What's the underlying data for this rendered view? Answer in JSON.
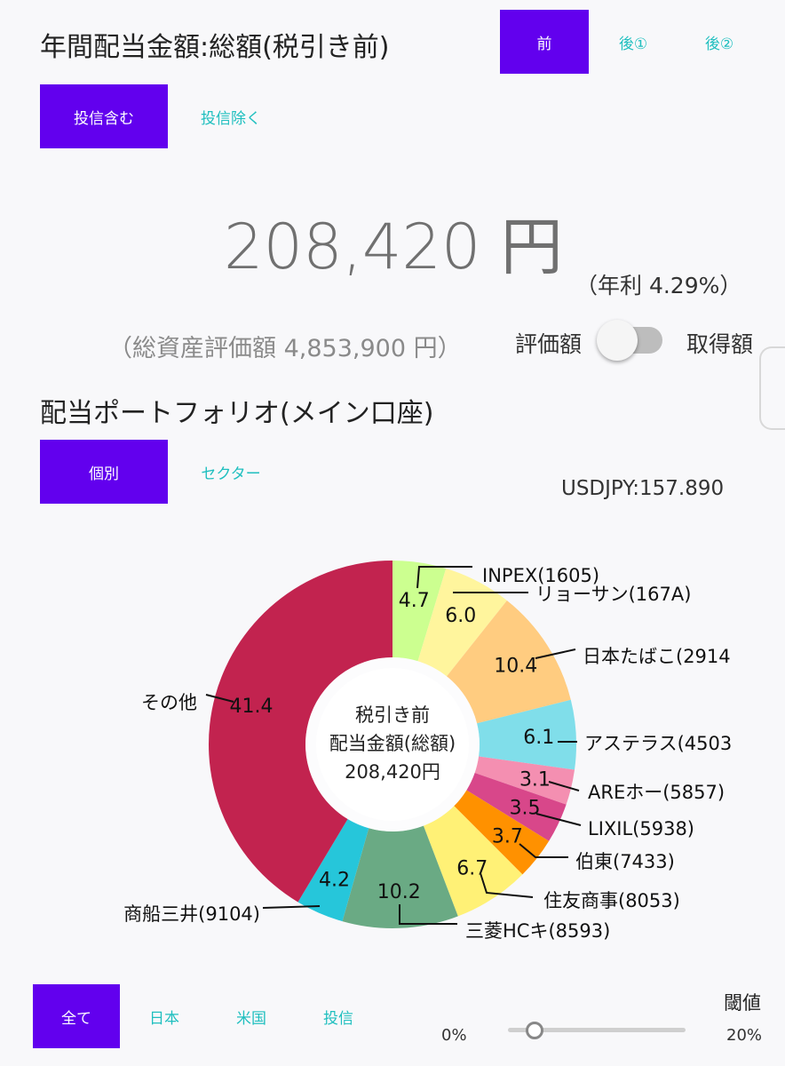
{
  "header": {
    "title": "年間配当金額:総額(税引き前)",
    "tax_tabs": [
      "前",
      "後①",
      "後②"
    ],
    "fund_tabs": [
      "投信含む",
      "投信除く"
    ]
  },
  "summary": {
    "amount": "208,420 円",
    "yield": "（年利 4.29%）",
    "total_assets": "（総資産評価額 4,853,900 円）",
    "toggle_left": "評価額",
    "toggle_right": "取得額"
  },
  "portfolio": {
    "title": "配当ポートフォリオ(メイン口座)",
    "view_tabs": [
      "個別",
      "セクター"
    ],
    "fx": "USDJPY:157.890"
  },
  "chart_data": {
    "type": "pie",
    "center_text": [
      "税引き前",
      "配当金額(総額)",
      "208,420円"
    ],
    "slices": [
      {
        "label": "INPEX(1605)",
        "value": "4.7",
        "color": "#ccff90"
      },
      {
        "label": "リョーサン(167A)",
        "value": "6.0",
        "color": "#fff59d"
      },
      {
        "label": "日本たばこ(2914",
        "value": "10.4",
        "color": "#ffcc80"
      },
      {
        "label": "アステラス(4503",
        "value": "6.1",
        "color": "#80deea"
      },
      {
        "label": "AREホー(5857)",
        "value": "3.1",
        "color": "#f48fb1"
      },
      {
        "label": "LIXIL(5938)",
        "value": "3.5",
        "color": "#d8478a"
      },
      {
        "label": "伯東(7433)",
        "value": "3.7",
        "color": "#ff9100"
      },
      {
        "label": "住友商事(8053)",
        "value": "6.7",
        "color": "#fff176"
      },
      {
        "label": "三菱HCキ(8593)",
        "value": "10.2",
        "color": "#6aaa84"
      },
      {
        "label": "商船三井(9104)",
        "value": "4.2",
        "color": "#26c6da"
      },
      {
        "label": "その他",
        "value": "41.4",
        "color": "#c2234f"
      }
    ]
  },
  "footer": {
    "region_tabs": [
      "全て",
      "日本",
      "米国",
      "投信"
    ],
    "threshold_label": "閾値",
    "threshold_min": "0%",
    "threshold_max": "20%",
    "threshold_value": 0.15
  }
}
